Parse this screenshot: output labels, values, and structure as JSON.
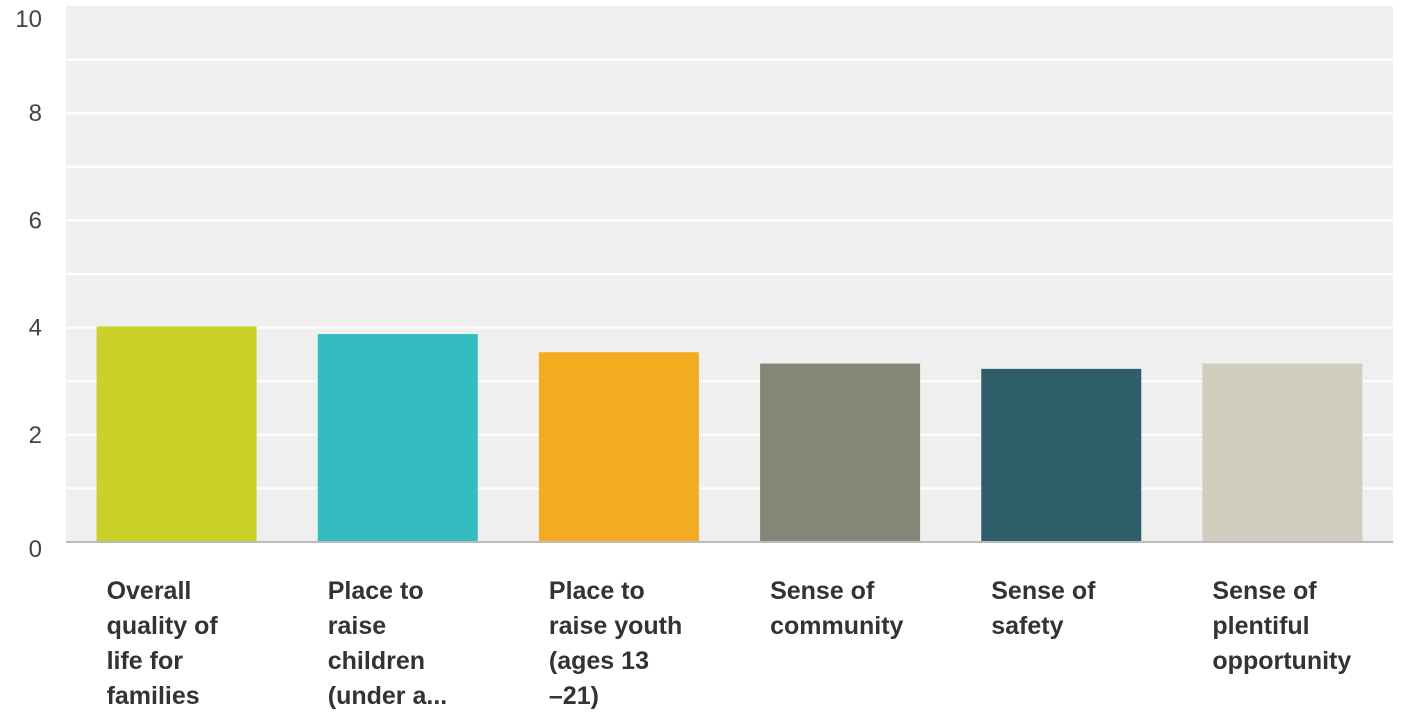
{
  "chart_data": {
    "type": "bar",
    "categories": [
      "Overall quality of life for families",
      "Place to raise children (under a…",
      "Place to raise youth (ages 13 –21)",
      "Sense of community",
      "Sense of safety",
      "Sense of plentiful opportunity"
    ],
    "category_label_lines": [
      "Overall\nquality of\nlife for\nfamilies",
      "Place to\nraise\nchildren\n(under a...",
      "Place to\nraise youth\n(ages 13\n–21)",
      "Sense of\ncommunity",
      "Sense of\nsafety",
      "Sense of\nplentiful\nopportunity"
    ],
    "values": [
      4.02,
      3.88,
      3.54,
      3.33,
      3.23,
      3.33
    ],
    "colors": [
      "#cbd029",
      "#33bcc1",
      "#f3ab20",
      "#868676",
      "#2f5e6b",
      "#d0cebe"
    ],
    "title": "",
    "xlabel": "",
    "ylabel": "",
    "ylim": [
      0,
      10
    ],
    "yticks": [
      0,
      2,
      4,
      6,
      8,
      10
    ],
    "grid": true,
    "legend": "none",
    "plot_background": "#efefef",
    "gridline_color": "#ffffff"
  }
}
